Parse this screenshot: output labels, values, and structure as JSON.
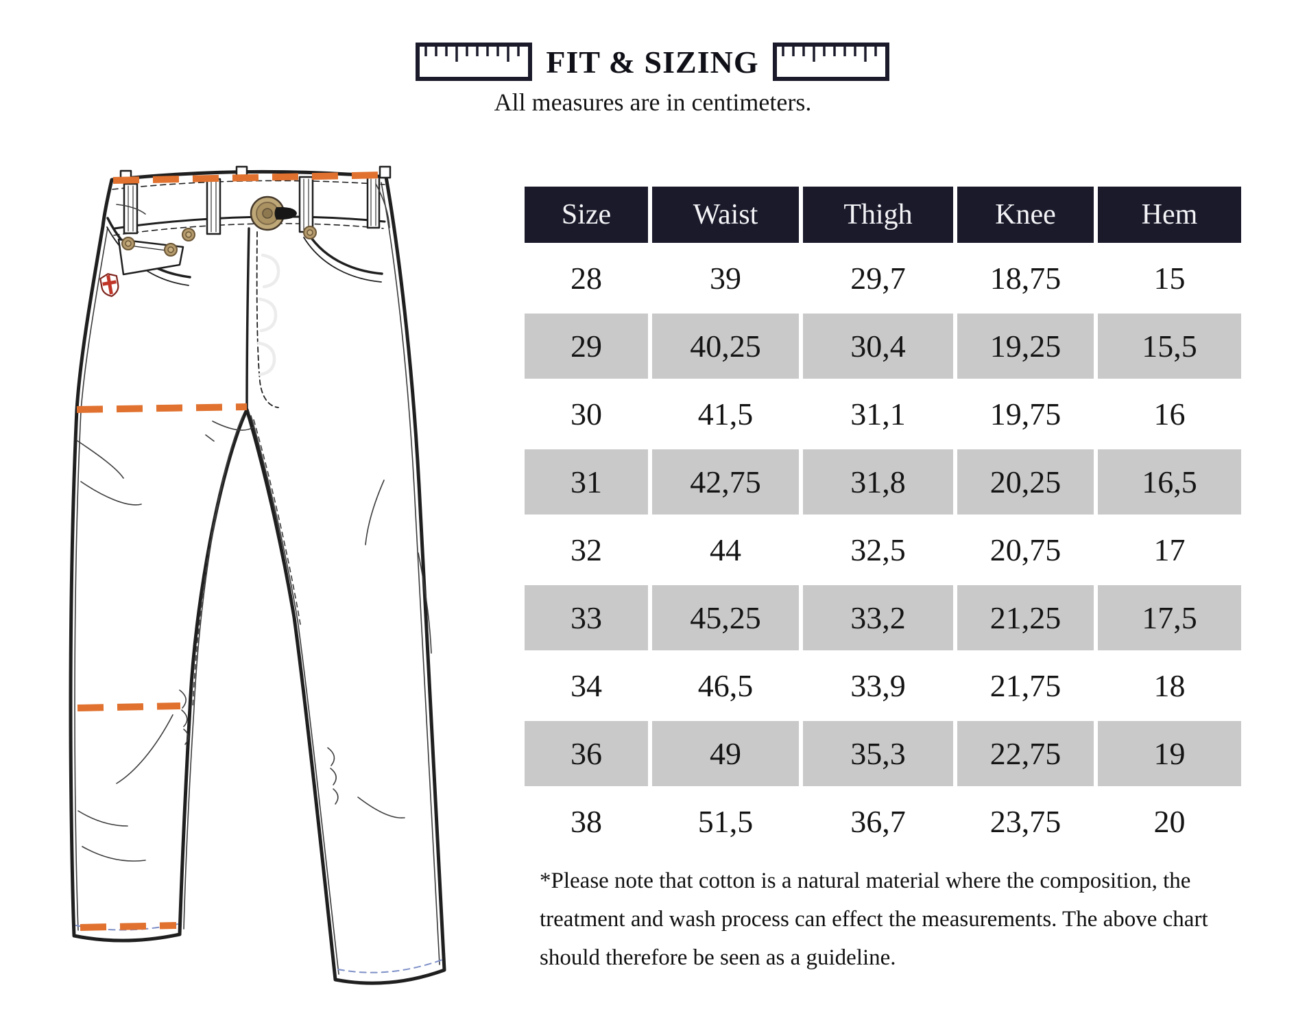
{
  "header": {
    "title": "FIT & SIZING",
    "subtitle": "All measures are in centimeters.",
    "left_icon": "ruler-icon",
    "right_icon": "ruler-icon"
  },
  "size_table": {
    "columns": [
      "Size",
      "Waist",
      "Thigh",
      "Knee",
      "Hem"
    ],
    "rows": [
      [
        "28",
        "39",
        "29,7",
        "18,75",
        "15"
      ],
      [
        "29",
        "40,25",
        "30,4",
        "19,25",
        "15,5"
      ],
      [
        "30",
        "41,5",
        "31,1",
        "19,75",
        "16"
      ],
      [
        "31",
        "42,75",
        "31,8",
        "20,25",
        "16,5"
      ],
      [
        "32",
        "44",
        "32,5",
        "20,75",
        "17"
      ],
      [
        "33",
        "45,25",
        "33,2",
        "21,25",
        "17,5"
      ],
      [
        "34",
        "46,5",
        "33,9",
        "21,75",
        "18"
      ],
      [
        "36",
        "49",
        "35,3",
        "22,75",
        "19"
      ],
      [
        "38",
        "51,5",
        "36,7",
        "23,75",
        "20"
      ]
    ]
  },
  "footnote": "*Please note that cotton is a natural material where the composition, the treatment and wash process can effect the measurements. The above chart should therefore be seen as a guideline.",
  "illustration": {
    "name": "jeans-technical-flat-sketch",
    "measure_lines": [
      "Waist",
      "Thigh",
      "Knee",
      "Hem"
    ]
  },
  "colors": {
    "header_bg": "#1a1a2b",
    "alt_row_bg": "#c9c9c9",
    "row_bg": "#ffffff",
    "measure_line": "#e0712f",
    "text": "#141414"
  }
}
